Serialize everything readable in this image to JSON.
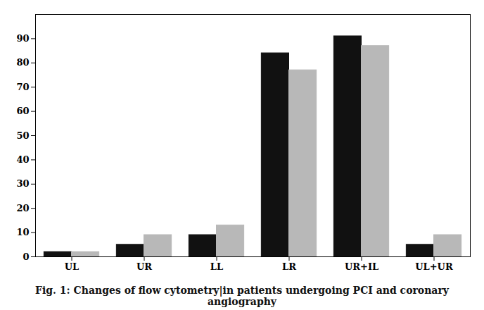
{
  "chart_data": {
    "type": "bar",
    "caption": "Fig. 1: Changes of flow cytometry|in patients undergoing PCI and coronary angiography",
    "categories": [
      "UL",
      "UR",
      "LL",
      "LR",
      "UR+IL",
      "UL+UR"
    ],
    "series": [
      {
        "color": "#111111",
        "values": [
          2,
          5,
          9,
          84,
          91,
          5
        ]
      },
      {
        "color": "#b8b8b8",
        "values": [
          2,
          9,
          13,
          77,
          87,
          9
        ]
      }
    ],
    "ylim": [
      0,
      100
    ],
    "yticks": [
      0,
      10,
      20,
      30,
      40,
      50,
      60,
      70,
      80,
      90
    ],
    "grid": false
  }
}
